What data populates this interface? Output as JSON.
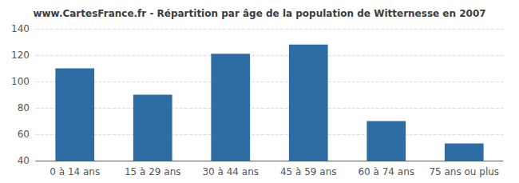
{
  "chart_data": {
    "type": "bar",
    "title": "www.CartesFrance.fr - Répartition par âge de la population de Witternesse en 2007",
    "categories": [
      "0 à 14 ans",
      "15 à 29 ans",
      "30 à 44 ans",
      "45 à 59 ans",
      "60 à 74 ans",
      "75 ans ou plus"
    ],
    "values": [
      110,
      90,
      121,
      128,
      70,
      53
    ],
    "color": "#2e6da4",
    "ylim": [
      40,
      140
    ],
    "yticks": [
      40,
      60,
      80,
      100,
      120,
      140
    ],
    "grid": true
  }
}
